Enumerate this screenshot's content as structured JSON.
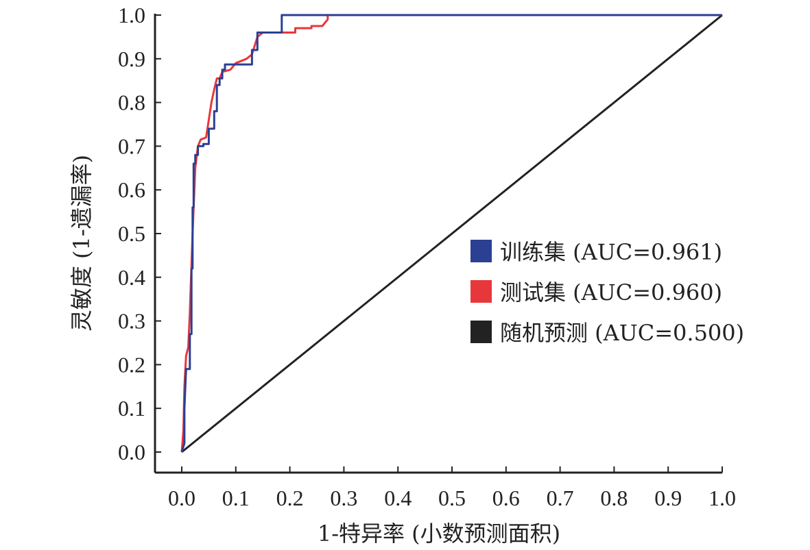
{
  "chart_data": {
    "type": "line",
    "xlabel": "1-特异率 (小数预测面积)",
    "ylabel": "灵敏度 (1-遗漏率)",
    "xlim": [
      0.0,
      1.0
    ],
    "ylim": [
      0.0,
      1.0
    ],
    "x_ticks": [
      "0.0",
      "0.1",
      "0.2",
      "0.3",
      "0.4",
      "0.5",
      "0.6",
      "0.7",
      "0.8",
      "0.9",
      "1.0"
    ],
    "y_ticks": [
      "0.0",
      "0.1",
      "0.2",
      "0.3",
      "0.4",
      "0.5",
      "0.6",
      "0.7",
      "0.8",
      "0.9",
      "1.0"
    ],
    "grid": false,
    "legend_position": "center-right",
    "series": [
      {
        "name": "训练集 (AUC=0.961)",
        "color": "#2b3f93",
        "points": [
          [
            0.0,
            0.0
          ],
          [
            0.005,
            0.02
          ],
          [
            0.005,
            0.1
          ],
          [
            0.008,
            0.19
          ],
          [
            0.015,
            0.19
          ],
          [
            0.015,
            0.27
          ],
          [
            0.018,
            0.27
          ],
          [
            0.018,
            0.42
          ],
          [
            0.02,
            0.42
          ],
          [
            0.02,
            0.56
          ],
          [
            0.022,
            0.56
          ],
          [
            0.022,
            0.66
          ],
          [
            0.025,
            0.66
          ],
          [
            0.025,
            0.68
          ],
          [
            0.03,
            0.68
          ],
          [
            0.03,
            0.7
          ],
          [
            0.04,
            0.7
          ],
          [
            0.04,
            0.705
          ],
          [
            0.05,
            0.705
          ],
          [
            0.05,
            0.74
          ],
          [
            0.06,
            0.74
          ],
          [
            0.06,
            0.78
          ],
          [
            0.065,
            0.78
          ],
          [
            0.065,
            0.84
          ],
          [
            0.07,
            0.84
          ],
          [
            0.07,
            0.855
          ],
          [
            0.075,
            0.855
          ],
          [
            0.075,
            0.875
          ],
          [
            0.08,
            0.875
          ],
          [
            0.08,
            0.887
          ],
          [
            0.13,
            0.887
          ],
          [
            0.13,
            0.92
          ],
          [
            0.14,
            0.92
          ],
          [
            0.14,
            0.96
          ],
          [
            0.185,
            0.96
          ],
          [
            0.185,
            1.0
          ],
          [
            1.0,
            1.0
          ]
        ]
      },
      {
        "name": "测试集 (AUC=0.960)",
        "color": "#e8373a",
        "points": [
          [
            0.0,
            0.0
          ],
          [
            0.003,
            0.05
          ],
          [
            0.005,
            0.15
          ],
          [
            0.008,
            0.22
          ],
          [
            0.012,
            0.24
          ],
          [
            0.015,
            0.32
          ],
          [
            0.02,
            0.5
          ],
          [
            0.025,
            0.65
          ],
          [
            0.03,
            0.7
          ],
          [
            0.035,
            0.715
          ],
          [
            0.045,
            0.72
          ],
          [
            0.05,
            0.76
          ],
          [
            0.055,
            0.8
          ],
          [
            0.06,
            0.83
          ],
          [
            0.065,
            0.855
          ],
          [
            0.07,
            0.855
          ],
          [
            0.075,
            0.87
          ],
          [
            0.09,
            0.875
          ],
          [
            0.1,
            0.89
          ],
          [
            0.12,
            0.9
          ],
          [
            0.13,
            0.91
          ],
          [
            0.14,
            0.95
          ],
          [
            0.15,
            0.96
          ],
          [
            0.21,
            0.96
          ],
          [
            0.21,
            0.97
          ],
          [
            0.24,
            0.97
          ],
          [
            0.24,
            0.975
          ],
          [
            0.26,
            0.975
          ],
          [
            0.27,
            0.99
          ],
          [
            0.27,
            1.0
          ],
          [
            1.0,
            1.0
          ]
        ]
      },
      {
        "name": "随机预测 (AUC=0.500)",
        "color": "#222222",
        "points": [
          [
            0.0,
            0.0
          ],
          [
            1.0,
            1.0
          ]
        ]
      }
    ]
  }
}
